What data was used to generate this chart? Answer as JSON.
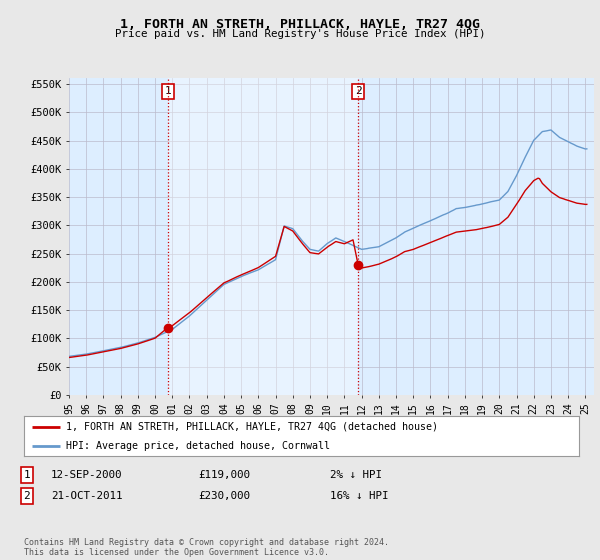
{
  "title": "1, FORTH AN STRETH, PHILLACK, HAYLE, TR27 4QG",
  "subtitle": "Price paid vs. HM Land Registry's House Price Index (HPI)",
  "ylim": [
    0,
    560000
  ],
  "yticks": [
    0,
    50000,
    100000,
    150000,
    200000,
    250000,
    300000,
    350000,
    400000,
    450000,
    500000,
    550000
  ],
  "ytick_labels": [
    "£0",
    "£50K",
    "£100K",
    "£150K",
    "£200K",
    "£250K",
    "£300K",
    "£350K",
    "£400K",
    "£450K",
    "£500K",
    "£550K"
  ],
  "background_color": "#e8e8e8",
  "plot_bg_color": "#ddeeff",
  "grid_color": "#bbbbcc",
  "hpi_color": "#6699cc",
  "price_color": "#cc0000",
  "purchase1_date": 2000.75,
  "purchase1_price": 119000,
  "purchase1_label": "1",
  "purchase2_date": 2011.8,
  "purchase2_price": 230000,
  "purchase2_label": "2",
  "vline_color": "#cc0000",
  "vline_style": ":",
  "shade_color": "#cce0f5",
  "legend_label_price": "1, FORTH AN STRETH, PHILLACK, HAYLE, TR27 4QG (detached house)",
  "legend_label_hpi": "HPI: Average price, detached house, Cornwall",
  "table_rows": [
    {
      "label": "1",
      "date": "12-SEP-2000",
      "price": "£119,000",
      "note": "2% ↓ HPI"
    },
    {
      "label": "2",
      "date": "21-OCT-2011",
      "price": "£230,000",
      "note": "16% ↓ HPI"
    }
  ],
  "footer": "Contains HM Land Registry data © Crown copyright and database right 2024.\nThis data is licensed under the Open Government Licence v3.0.",
  "xtick_years": [
    1995,
    1996,
    1997,
    1998,
    1999,
    2000,
    2001,
    2002,
    2003,
    2004,
    2005,
    2006,
    2007,
    2008,
    2009,
    2010,
    2011,
    2012,
    2013,
    2014,
    2015,
    2016,
    2017,
    2018,
    2019,
    2020,
    2021,
    2022,
    2023,
    2024,
    2025
  ]
}
